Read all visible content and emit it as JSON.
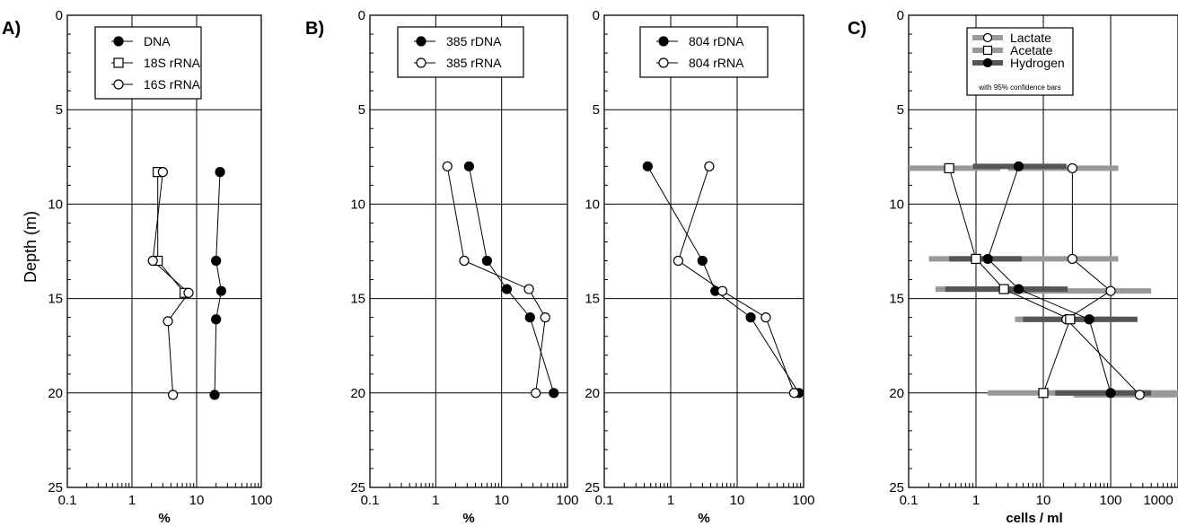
{
  "figure": {
    "ylabel": "Depth (m)",
    "y_ticks": [
      0,
      5,
      10,
      15,
      20,
      25
    ],
    "x_ticks": [
      "0.1",
      "1",
      "10",
      "100"
    ],
    "x_ticks_c": [
      "0.1",
      "1",
      "10",
      "100",
      "1000"
    ]
  },
  "chart_data": [
    {
      "panel": "A)",
      "type": "line",
      "x_scale": "log",
      "xlim": [
        0.1,
        100
      ],
      "ylim": [
        25,
        0
      ],
      "xlabel": "%",
      "ylabel": "Depth (m)",
      "grid": true,
      "legend_position": "top",
      "series": [
        {
          "name": "DNA",
          "marker": "filled-circle",
          "points": [
            [
              23,
              8.3
            ],
            [
              20,
              13
            ],
            [
              24,
              14.6
            ],
            [
              20,
              16.1
            ],
            [
              19,
              20.1
            ]
          ]
        },
        {
          "name": "18S rRNA",
          "marker": "open-square",
          "points": [
            [
              2.5,
              8.3
            ],
            [
              2.5,
              13
            ],
            [
              6.5,
              14.7
            ]
          ]
        },
        {
          "name": "16S rRNA",
          "marker": "open-circle",
          "points": [
            [
              3,
              8.3
            ],
            [
              2.1,
              13
            ],
            [
              7.5,
              14.7
            ],
            [
              3.6,
              16.2
            ],
            [
              4.3,
              20.1
            ]
          ]
        }
      ]
    },
    {
      "panel": "B)",
      "type": "line",
      "x_scale": "log",
      "xlim": [
        0.1,
        100
      ],
      "ylim": [
        25,
        0
      ],
      "xlabel": "%",
      "grid": true,
      "legend_position": "top",
      "series": [
        {
          "name": "385 rDNA",
          "marker": "filled-circle",
          "points": [
            [
              3.2,
              8
            ],
            [
              6,
              13
            ],
            [
              12,
              14.5
            ],
            [
              27,
              16
            ],
            [
              62,
              20
            ]
          ]
        },
        {
          "name": "385 rRNA",
          "marker": "open-circle",
          "points": [
            [
              1.5,
              8
            ],
            [
              2.7,
              13
            ],
            [
              26,
              14.5
            ],
            [
              46,
              16
            ],
            [
              33,
              20
            ]
          ]
        }
      ]
    },
    {
      "type": "line",
      "x_scale": "log",
      "xlim": [
        0.1,
        100
      ],
      "ylim": [
        25,
        0
      ],
      "xlabel": "%",
      "grid": true,
      "legend_position": "top",
      "series": [
        {
          "name": "804 rDNA",
          "marker": "filled-circle",
          "points": [
            [
              0.45,
              8
            ],
            [
              3,
              13
            ],
            [
              4.7,
              14.6
            ],
            [
              16,
              16
            ],
            [
              85,
              20
            ]
          ]
        },
        {
          "name": "804 rRNA",
          "marker": "open-circle",
          "points": [
            [
              3.8,
              8
            ],
            [
              1.3,
              13
            ],
            [
              6,
              14.6
            ],
            [
              27,
              16
            ],
            [
              72,
              20
            ]
          ]
        }
      ]
    },
    {
      "panel": "C)",
      "type": "line",
      "x_scale": "log",
      "xlim": [
        0.1,
        1000
      ],
      "ylim": [
        25,
        0
      ],
      "xlabel": "cells  /  ml",
      "grid": true,
      "legend_position": "top",
      "legend_note": "with 95% confidence bars",
      "series": [
        {
          "name": "Lactate",
          "marker": "open-circle",
          "color": "#999999",
          "points": [
            [
              27,
              8.1
            ],
            [
              27,
              12.9
            ],
            [
              100,
              14.6
            ],
            [
              22,
              16.1
            ],
            [
              270,
              20.1
            ]
          ],
          "intervals": [
            [
              3,
              130
            ],
            [
              3.5,
              130
            ],
            [
              3,
              400
            ],
            [
              3.8,
              120
            ],
            [
              28,
              1000
            ]
          ]
        },
        {
          "name": "Acetate",
          "marker": "open-square",
          "color": "#999999",
          "points": [
            [
              0.4,
              8.1
            ],
            [
              1,
              12.9
            ],
            [
              2.6,
              14.5
            ],
            [
              25,
              16.1
            ],
            [
              10,
              20
            ]
          ],
          "intervals": [
            [
              0.1,
              2.3
            ],
            [
              0.2,
              3.7
            ],
            [
              0.25,
              12
            ],
            [
              4,
              110
            ],
            [
              1.5,
              1000
            ]
          ]
        },
        {
          "name": "Hydrogen",
          "marker": "filled-circle",
          "color": "#555555",
          "points": [
            [
              4.3,
              8
            ],
            [
              1.5,
              12.9
            ],
            [
              4.3,
              14.5
            ],
            [
              48,
              16.1
            ],
            [
              100,
              20
            ]
          ],
          "intervals": [
            [
              0.9,
              22
            ],
            [
              0.4,
              4.8
            ],
            [
              0.35,
              23
            ],
            [
              5,
              250
            ],
            [
              15,
              400
            ]
          ]
        }
      ]
    }
  ]
}
